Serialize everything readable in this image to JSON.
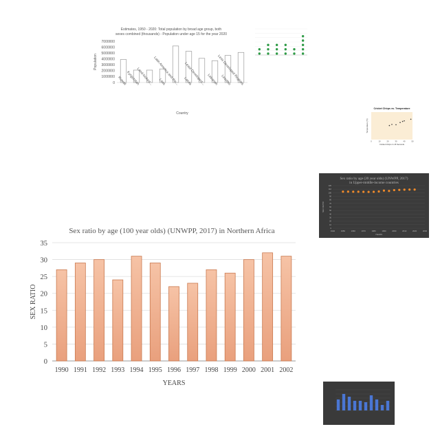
{
  "chart_data": [
    {
      "id": "population",
      "type": "bar",
      "title": "Estimates, 1950 - 2020: Total population by broad age group, both sexes combined (thousands) - Population under age 15 for the year 2020",
      "xlabel": "Country",
      "ylabel": "Population",
      "categories": [
        "Kuwait",
        "Kyrgyzstan",
        "Land-locked...",
        "Laos",
        "Latin America and the...",
        "Latvia",
        "Least Developed...",
        "Lebanon",
        "Lesotho",
        "Less Developed Regions"
      ],
      "values": [
        3900000,
        2100000,
        2100000,
        2300000,
        6200000,
        5300000,
        4100000,
        3700000,
        4600000,
        5100000
      ],
      "ylim": [
        0,
        7000000
      ],
      "yticks": [
        "0",
        "1000000",
        "2000000",
        "3000000",
        "4000000",
        "5000000",
        "6000000",
        "7000000"
      ],
      "colors": {
        "bar_fill": "#ffffff",
        "bar_stroke": "#9a9a9a",
        "text": "#555555"
      }
    },
    {
      "id": "dots",
      "type": "scatter",
      "title": "",
      "categories": [
        "",
        "",
        "",
        "",
        "",
        ""
      ],
      "values": [
        2,
        3,
        3,
        3,
        2,
        5
      ],
      "ylim": [
        0,
        6
      ],
      "colors": {
        "marker": "#2e9b46",
        "text": "#888888"
      }
    },
    {
      "id": "crickets",
      "type": "scatter",
      "title": "Cricket Chirps vs. Temperature",
      "xlabel": "Cricket Chirps in 15 Seconds",
      "ylabel": "Temperature (°F)",
      "x": [
        22,
        25,
        30,
        35,
        38,
        40,
        48
      ],
      "y": [
        51,
        55,
        54,
        62,
        66,
        68,
        74
      ],
      "xlim": [
        0,
        50
      ],
      "ylim": [
        0,
        100
      ],
      "xticks": [
        "0",
        "10",
        "20",
        "30",
        "40",
        "50"
      ],
      "colors": {
        "background": "#fbedd5",
        "marker": "#333333"
      }
    },
    {
      "id": "sex20",
      "type": "line",
      "title": "Sex ratio by age (20 year olds) (UNWPP, 2017) in Upper-middle-income countries",
      "xlabel": "YEARS",
      "ylabel": "SEX RATIO",
      "x": [
        1950,
        1955,
        1960,
        1965,
        1970,
        1975,
        1980,
        1985,
        1990,
        1995,
        2000,
        2005,
        2010,
        2015,
        2020
      ],
      "y": [
        103.1,
        103.0,
        102.9,
        102.8,
        102.6,
        102.4,
        102.7,
        103.6,
        105.9,
        105.1,
        107.3,
        108.0,
        108.6,
        108.8,
        108.8
      ],
      "xlim": [
        1940,
        2030
      ],
      "ylim": [
        0,
        120
      ],
      "xticks": [
        "1940",
        "1950",
        "1960",
        "1970",
        "1980",
        "1990",
        "2000",
        "2010",
        "2020",
        "2030"
      ],
      "yticks": [
        "0",
        "10",
        "20",
        "30",
        "40",
        "50",
        "60",
        "70",
        "80",
        "90",
        "100",
        "110",
        "120"
      ],
      "colors": {
        "background": "#3b3b3b",
        "marker": "#f08a2a",
        "text": "#bdbdbd"
      }
    },
    {
      "id": "sex100",
      "type": "bar",
      "title": "Sex ratio by age (100 year olds) (UNWPP, 2017) in Northern Africa",
      "xlabel": "YEARS",
      "ylabel": "SEX RATIO",
      "categories": [
        "1990",
        "1991",
        "1992",
        "1993",
        "1994",
        "1995",
        "1996",
        "1997",
        "1998",
        "1999",
        "2000",
        "2001",
        "2002"
      ],
      "values": [
        27,
        29,
        30,
        24,
        31,
        29,
        22,
        23,
        27,
        26,
        30,
        32,
        31
      ],
      "ylim": [
        0,
        35
      ],
      "yticks": [
        "0",
        "5",
        "10",
        "15",
        "20",
        "25",
        "30",
        "35"
      ],
      "colors": {
        "bar_top": "#f6c3a6",
        "bar_bottom": "#e9a07d",
        "bar_stroke": "#c9794f",
        "text": "#444444",
        "grid": "#dddddd"
      }
    },
    {
      "id": "blue",
      "type": "bar",
      "title": "",
      "values": [
        8,
        12,
        10,
        7,
        7,
        6,
        11,
        8,
        4,
        7
      ],
      "ylim": [
        0,
        15
      ],
      "colors": {
        "background": "#3a3a3a",
        "bar": "#4a76d3",
        "text": "#bbbbbb"
      }
    }
  ]
}
